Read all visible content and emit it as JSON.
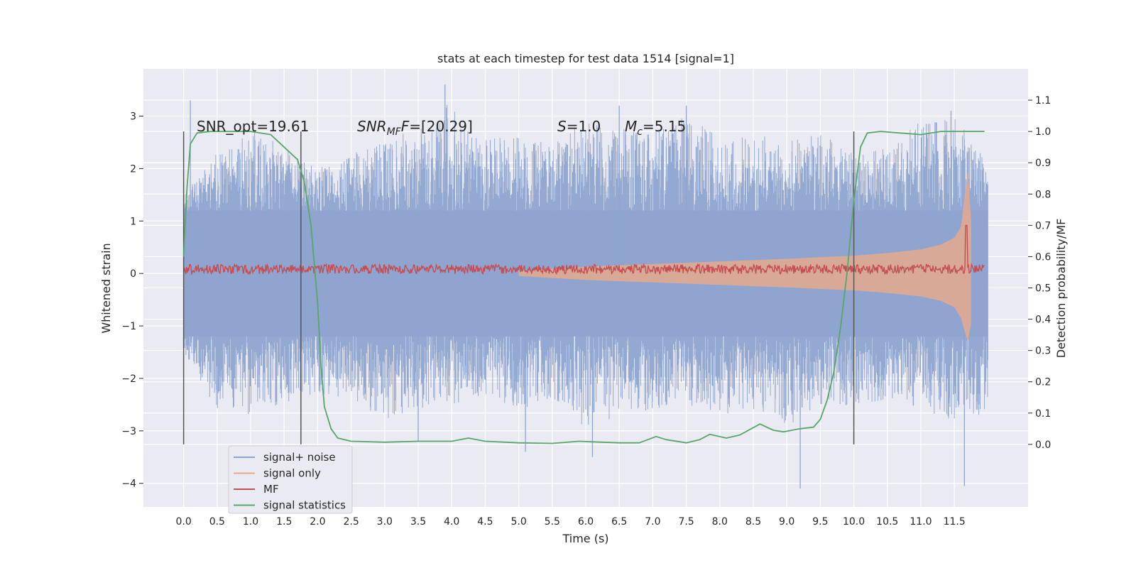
{
  "chart_data": {
    "type": "line",
    "title": "stats at each timestep for test data 1514 [signal=1]",
    "xlabel": "Time (s)",
    "ylabel_left": "Whitened strain",
    "ylabel_right": "Detection probability/MF",
    "xlim": [
      -0.6,
      12.6
    ],
    "ylim_left": [
      -4.45,
      3.9
    ],
    "ylim_right": [
      -0.2,
      1.2
    ],
    "x_ticks": [
      0.0,
      0.5,
      1.0,
      1.5,
      2.0,
      2.5,
      3.0,
      3.5,
      4.0,
      4.5,
      5.0,
      5.5,
      6.0,
      6.5,
      7.0,
      7.5,
      8.0,
      8.5,
      9.0,
      9.5,
      10.0,
      10.5,
      11.0,
      11.5
    ],
    "x_tick_labels": [
      "0.0",
      "0.5",
      "1.0",
      "1.5",
      "2.0",
      "2.5",
      "3.0",
      "3.5",
      "4.0",
      "4.5",
      "5.0",
      "5.5",
      "6.0",
      "6.5",
      "7.0",
      "7.5",
      "8.0",
      "8.5",
      "9.0",
      "9.5",
      "10.0",
      "10.5",
      "11.0",
      "11.5"
    ],
    "y_left_ticks": [
      3,
      2,
      1,
      0,
      -1,
      -2,
      -3,
      -4
    ],
    "y_left_tick_labels": [
      "3",
      "2",
      "1",
      "0",
      "−1",
      "−2",
      "−3",
      "−4"
    ],
    "y_right_ticks": [
      1.1,
      1.0,
      0.9,
      0.8,
      0.7,
      0.6,
      0.5,
      0.4,
      0.3,
      0.2,
      0.1,
      0.0
    ],
    "y_right_tick_labels": [
      "1.1",
      "1.0",
      "0.9",
      "0.8",
      "0.7",
      "0.6",
      "0.5",
      "0.4",
      "0.3",
      "0.2",
      "0.1",
      "0.0"
    ],
    "grid": true,
    "legend_position": "lower-left",
    "annotations": {
      "snr_opt": "SNR_opt=19.61",
      "snr_mf_base": "SNR",
      "snr_mf_sub": "MF",
      "snr_mf_value": "=[20.29]",
      "s_symbol": "S",
      "s_value": "=1.0",
      "mc_symbol": "M",
      "mc_sub": "c",
      "mc_value": "=5.15"
    },
    "vertical_markers": [
      0.0,
      1.75,
      10.0
    ],
    "series": [
      {
        "name": "signal+ noise",
        "color": "#8fa5cf",
        "axis": "left",
        "x_range": [
          0.0,
          12.0
        ],
        "envelope_upper": [
          [
            0.0,
            1.5
          ],
          [
            0.5,
            2.3
          ],
          [
            1.0,
            2.8
          ],
          [
            1.5,
            2.4
          ],
          [
            2.0,
            2.0
          ],
          [
            2.5,
            2.3
          ],
          [
            3.0,
            2.5
          ],
          [
            3.5,
            2.8
          ],
          [
            4.0,
            3.3
          ],
          [
            4.5,
            2.6
          ],
          [
            5.0,
            2.6
          ],
          [
            5.5,
            2.5
          ],
          [
            6.0,
            2.9
          ],
          [
            6.5,
            2.8
          ],
          [
            7.0,
            2.7
          ],
          [
            7.5,
            3.0
          ],
          [
            8.0,
            2.6
          ],
          [
            8.5,
            2.7
          ],
          [
            9.0,
            2.5
          ],
          [
            9.5,
            2.7
          ],
          [
            10.0,
            2.3
          ],
          [
            10.5,
            2.4
          ],
          [
            11.0,
            2.9
          ],
          [
            11.5,
            3.0
          ],
          [
            12.0,
            2.2
          ]
        ],
        "envelope_lower": [
          [
            0.0,
            -1.5
          ],
          [
            0.5,
            -2.6
          ],
          [
            1.0,
            -2.7
          ],
          [
            1.5,
            -2.5
          ],
          [
            2.0,
            -2.3
          ],
          [
            2.5,
            -2.4
          ],
          [
            3.0,
            -2.8
          ],
          [
            3.5,
            -2.6
          ],
          [
            4.0,
            -2.5
          ],
          [
            4.5,
            -2.3
          ],
          [
            5.0,
            -2.6
          ],
          [
            5.5,
            -2.4
          ],
          [
            6.0,
            -3.0
          ],
          [
            6.5,
            -2.7
          ],
          [
            7.0,
            -2.6
          ],
          [
            7.5,
            -2.5
          ],
          [
            8.0,
            -2.7
          ],
          [
            8.5,
            -2.6
          ],
          [
            9.0,
            -2.9
          ],
          [
            9.5,
            -2.6
          ],
          [
            10.0,
            -2.5
          ],
          [
            10.5,
            -2.4
          ],
          [
            11.0,
            -2.6
          ],
          [
            11.5,
            -2.8
          ],
          [
            12.0,
            -2.7
          ]
        ],
        "peaks": [
          [
            0.1,
            3.3
          ],
          [
            3.5,
            -3.2
          ],
          [
            3.9,
            3.6
          ],
          [
            5.1,
            -3.4
          ],
          [
            6.1,
            -3.5
          ],
          [
            6.5,
            3.2
          ],
          [
            7.5,
            3.2
          ],
          [
            9.2,
            -4.1
          ],
          [
            11.45,
            3.1
          ],
          [
            11.65,
            -4.05
          ]
        ]
      },
      {
        "name": "signal only",
        "color": "#e5a98d",
        "axis": "left",
        "envelope": [
          [
            5.0,
            0.05
          ],
          [
            6.0,
            0.13
          ],
          [
            7.0,
            0.18
          ],
          [
            8.0,
            0.23
          ],
          [
            9.0,
            0.28
          ],
          [
            10.0,
            0.34
          ],
          [
            10.5,
            0.39
          ],
          [
            11.0,
            0.46
          ],
          [
            11.3,
            0.55
          ],
          [
            11.5,
            0.68
          ],
          [
            11.6,
            0.9
          ],
          [
            11.7,
            1.95
          ],
          [
            11.75,
            1.0
          ]
        ]
      },
      {
        "name": "MF",
        "color": "#c44e52",
        "axis": "right",
        "baseline": 0.56,
        "amplitude": 0.015,
        "peak": [
          11.68,
          0.7
        ]
      },
      {
        "name": "signal statistics",
        "color": "#55a868",
        "axis": "right",
        "points": [
          [
            0.0,
            0.6
          ],
          [
            0.05,
            0.82
          ],
          [
            0.1,
            0.96
          ],
          [
            0.2,
            0.995
          ],
          [
            0.4,
            1.0
          ],
          [
            1.0,
            1.0
          ],
          [
            1.3,
            0.99
          ],
          [
            1.5,
            0.95
          ],
          [
            1.7,
            0.91
          ],
          [
            1.8,
            0.84
          ],
          [
            1.9,
            0.7
          ],
          [
            2.0,
            0.45
          ],
          [
            2.05,
            0.25
          ],
          [
            2.1,
            0.12
          ],
          [
            2.2,
            0.05
          ],
          [
            2.3,
            0.02
          ],
          [
            2.5,
            0.01
          ],
          [
            3.0,
            0.007
          ],
          [
            3.5,
            0.01
          ],
          [
            4.0,
            0.01
          ],
          [
            4.25,
            0.02
          ],
          [
            4.5,
            0.01
          ],
          [
            5.0,
            0.005
          ],
          [
            5.5,
            0.003
          ],
          [
            5.9,
            0.01
          ],
          [
            6.1,
            0.008
          ],
          [
            6.5,
            0.005
          ],
          [
            6.8,
            0.005
          ],
          [
            7.05,
            0.025
          ],
          [
            7.2,
            0.015
          ],
          [
            7.5,
            0.005
          ],
          [
            7.7,
            0.015
          ],
          [
            7.85,
            0.032
          ],
          [
            8.1,
            0.02
          ],
          [
            8.3,
            0.03
          ],
          [
            8.6,
            0.065
          ],
          [
            8.8,
            0.045
          ],
          [
            8.95,
            0.04
          ],
          [
            9.2,
            0.05
          ],
          [
            9.4,
            0.055
          ],
          [
            9.5,
            0.08
          ],
          [
            9.6,
            0.14
          ],
          [
            9.7,
            0.23
          ],
          [
            9.8,
            0.37
          ],
          [
            9.9,
            0.55
          ],
          [
            10.0,
            0.78
          ],
          [
            10.1,
            0.95
          ],
          [
            10.2,
            0.995
          ],
          [
            10.4,
            1.0
          ],
          [
            11.0,
            0.99
          ],
          [
            11.3,
            1.0
          ],
          [
            11.95,
            1.0
          ]
        ]
      }
    ]
  }
}
